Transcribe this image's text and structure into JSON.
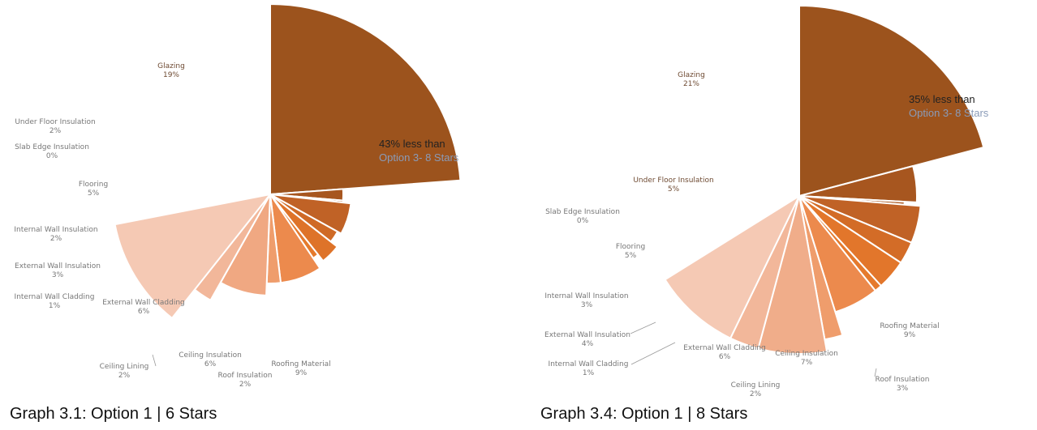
{
  "colors": {
    "label": "#777777",
    "label_inside": "#6e4a32",
    "note_secondary": "#8a9bb8",
    "separator": "#ffffff",
    "leader": "#9a9a9a"
  },
  "chart_data": [
    {
      "type": "pie",
      "title": "Graph 3.1: Option 1 | 6 Stars",
      "note": [
        "43% less than",
        "Option 3- 8 Stars"
      ],
      "slices": [
        {
          "name": "Glazing",
          "value": 19,
          "label": "19%",
          "color": "#9c531d"
        },
        {
          "name": "Under Floor Insulation",
          "value": 2,
          "label": "2%",
          "color": "#a7561f"
        },
        {
          "name": "Slab Edge Insulation",
          "value": 0,
          "label": "0%",
          "color": "#ac5920"
        },
        {
          "name": "Flooring",
          "value": 5,
          "label": "5%",
          "color": "#c06226"
        },
        {
          "name": "Internal Wall Insulation",
          "value": 2,
          "label": "2%",
          "color": "#cf6a26"
        },
        {
          "name": "External Wall Insulation",
          "value": 3,
          "label": "3%",
          "color": "#de7329"
        },
        {
          "name": "Internal Wall Cladding",
          "value": 1,
          "label": "1%",
          "color": "#e57a2d"
        },
        {
          "name": "External Wall Cladding",
          "value": 6,
          "label": "6%",
          "color": "#ec8a4d"
        },
        {
          "name": "Ceiling Lining",
          "value": 2,
          "label": "2%",
          "color": "#ef9d6c"
        },
        {
          "name": "Ceiling Insulation",
          "value": 6,
          "label": "6%",
          "color": "#f0a882"
        },
        {
          "name": "Roof Insulation",
          "value": 2,
          "label": "2%",
          "color": "#f2b79a"
        },
        {
          "name": "Roofing Material",
          "value": 9,
          "label": "9%",
          "color": "#f5c9b4"
        }
      ]
    },
    {
      "type": "pie",
      "title": "Graph 3.4: Option 1 | 8 Stars",
      "note": [
        "35% less than",
        "Option 3- 8 Stars"
      ],
      "slices": [
        {
          "name": "Glazing",
          "value": 21,
          "label": "21%",
          "color": "#9c531d"
        },
        {
          "name": "Under Floor Insulation",
          "value": 5,
          "label": "5%",
          "color": "#a7561f"
        },
        {
          "name": "Slab Edge Insulation",
          "value": 0,
          "label": "0%",
          "color": "#ac5920"
        },
        {
          "name": "Flooring",
          "value": 5,
          "label": "5%",
          "color": "#c06226"
        },
        {
          "name": "Internal Wall Insulation",
          "value": 3,
          "label": "3%",
          "color": "#d36c27"
        },
        {
          "name": "External Wall Insulation",
          "value": 4,
          "label": "4%",
          "color": "#e2762b"
        },
        {
          "name": "Internal Wall Cladding",
          "value": 1,
          "label": "1%",
          "color": "#e57a2d"
        },
        {
          "name": "External Wall Cladding",
          "value": 6,
          "label": "6%",
          "color": "#ec8a4d"
        },
        {
          "name": "Ceiling Lining",
          "value": 2,
          "label": "2%",
          "color": "#ef9d6c"
        },
        {
          "name": "Ceiling Insulation",
          "value": 7,
          "label": "7%",
          "color": "#f0ad8a"
        },
        {
          "name": "Roof Insulation",
          "value": 3,
          "label": "3%",
          "color": "#f2b79a"
        },
        {
          "name": "Roofing Material",
          "value": 9,
          "label": "9%",
          "color": "#f5c9b4"
        }
      ]
    }
  ]
}
